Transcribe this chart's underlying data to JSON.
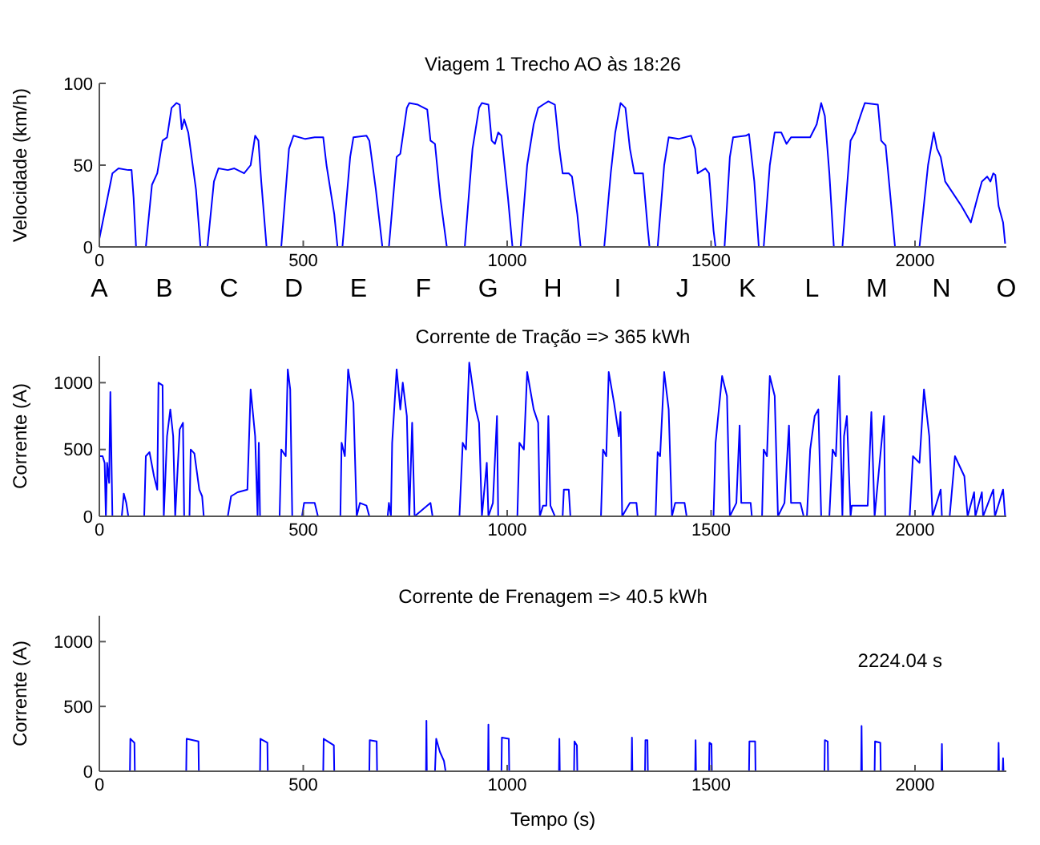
{
  "chart_data": [
    {
      "type": "line",
      "title": "Viagem 1 Trecho AO às 18:26",
      "ylabel": "Velocidade (km/h)",
      "color": "#0000ff",
      "xlim": [
        0,
        2224
      ],
      "xticks": [
        0,
        500,
        1000,
        1500,
        2000
      ],
      "ylim": [
        0,
        100
      ],
      "yticks": [
        0,
        50,
        100
      ],
      "x": [
        0,
        16,
        32,
        47,
        71,
        79,
        84,
        90,
        114,
        129,
        142,
        155,
        166,
        177,
        189,
        197,
        202,
        208,
        218,
        237,
        248,
        265,
        281,
        292,
        315,
        331,
        355,
        371,
        382,
        390,
        397,
        410,
        446,
        465,
        476,
        505,
        528,
        549,
        557,
        576,
        584,
        596,
        615,
        623,
        655,
        662,
        678,
        694,
        710,
        729,
        738,
        754,
        760,
        781,
        804,
        812,
        823,
        836,
        852,
        896,
        915,
        931,
        938,
        954,
        962,
        970,
        978,
        986,
        1002,
        1013,
        1033,
        1049,
        1065,
        1076,
        1088,
        1101,
        1117,
        1128,
        1136,
        1151,
        1159,
        1172,
        1180,
        1238,
        1254,
        1265,
        1278,
        1290,
        1301,
        1312,
        1333,
        1345,
        1349,
        1369,
        1385,
        1396,
        1420,
        1451,
        1461,
        1467,
        1486,
        1495,
        1506,
        1511,
        1533,
        1546,
        1554,
        1585,
        1593,
        1606,
        1617,
        1629,
        1644,
        1656,
        1672,
        1685,
        1696,
        1743,
        1759,
        1770,
        1779,
        1790,
        1801,
        1822,
        1842,
        1853,
        1866,
        1877,
        1909,
        1917,
        1928,
        1940,
        1951,
        2011,
        2032,
        2046,
        2054,
        2063,
        2074,
        2114,
        2137,
        2153,
        2164,
        2177,
        2185,
        2192,
        2197,
        2205,
        2216,
        2221
      ],
      "values": [
        5,
        25,
        45,
        48,
        47,
        47,
        30,
        0,
        0,
        38,
        45,
        65,
        67,
        85,
        88,
        87,
        72,
        78,
        70,
        35,
        0,
        0,
        40,
        48,
        47,
        48,
        45,
        50,
        68,
        65,
        40,
        0,
        0,
        60,
        68,
        66,
        67,
        67,
        50,
        20,
        0,
        0,
        55,
        67,
        68,
        65,
        35,
        0,
        0,
        55,
        57,
        85,
        88,
        87,
        84,
        65,
        63,
        30,
        0,
        0,
        60,
        85,
        88,
        87,
        65,
        63,
        70,
        68,
        30,
        0,
        0,
        50,
        75,
        85,
        87,
        89,
        87,
        60,
        45,
        45,
        43,
        20,
        0,
        0,
        45,
        70,
        88,
        85,
        60,
        45,
        45,
        10,
        0,
        0,
        50,
        67,
        66,
        68,
        60,
        45,
        48,
        45,
        10,
        0,
        0,
        55,
        67,
        68,
        69,
        40,
        0,
        0,
        50,
        70,
        70,
        63,
        67,
        67,
        75,
        88,
        80,
        45,
        0,
        0,
        65,
        70,
        80,
        88,
        87,
        65,
        62,
        30,
        0,
        0,
        50,
        70,
        60,
        55,
        40,
        25,
        15,
        30,
        40,
        43,
        40,
        45,
        44,
        25,
        15,
        2
      ],
      "annotations": [
        "A",
        "B",
        "C",
        "D",
        "E",
        "F",
        "G",
        "H",
        "I",
        "J",
        "K",
        "L",
        "M",
        "N",
        "O"
      ]
    },
    {
      "type": "line",
      "title": "Corrente de Tração => 365 kWh",
      "ylabel": "Corrente (A)",
      "color": "#0000ff",
      "xlim": [
        0,
        2224
      ],
      "xticks": [
        0,
        500,
        1000,
        1500,
        2000
      ],
      "ylim": [
        0,
        1200
      ],
      "yticks": [
        0,
        500,
        1000
      ],
      "x": [
        0,
        8,
        13,
        16,
        19,
        24,
        27,
        32,
        55,
        60,
        66,
        71,
        110,
        114,
        123,
        134,
        142,
        145,
        155,
        158,
        166,
        174,
        181,
        186,
        197,
        205,
        208,
        221,
        224,
        233,
        245,
        252,
        256,
        315,
        323,
        339,
        363,
        371,
        382,
        388,
        391,
        394,
        442,
        446,
        457,
        462,
        468,
        473,
        497,
        502,
        528,
        536,
        591,
        594,
        602,
        610,
        623,
        631,
        639,
        655,
        662,
        707,
        710,
        715,
        718,
        729,
        738,
        744,
        754,
        760,
        767,
        773,
        812,
        817,
        883,
        891,
        899,
        907,
        923,
        931,
        938,
        950,
        954,
        965,
        975,
        978,
        1025,
        1030,
        1041,
        1049,
        1065,
        1076,
        1080,
        1088,
        1096,
        1101,
        1106,
        1117,
        1136,
        1139,
        1151,
        1155,
        1230,
        1235,
        1243,
        1249,
        1262,
        1274,
        1278,
        1282,
        1301,
        1317,
        1320,
        1364,
        1369,
        1375,
        1385,
        1396,
        1404,
        1412,
        1435,
        1440,
        1506,
        1511,
        1527,
        1539,
        1546,
        1562,
        1570,
        1574,
        1597,
        1600,
        1625,
        1629,
        1637,
        1644,
        1656,
        1664,
        1680,
        1691,
        1696,
        1719,
        1727,
        1735,
        1743,
        1754,
        1763,
        1770,
        1790,
        1798,
        1806,
        1814,
        1822,
        1826,
        1833,
        1842,
        1845,
        1884,
        1893,
        1901,
        1924,
        1927,
        1987,
        1995,
        2011,
        2022,
        2035,
        2043,
        2063,
        2066,
        2085,
        2098,
        2121,
        2129,
        2145,
        2148,
        2164,
        2167,
        2192,
        2196,
        2216,
        2221
      ],
      "values": [
        450,
        450,
        400,
        0,
        400,
        250,
        930,
        0,
        0,
        170,
        100,
        0,
        0,
        450,
        480,
        300,
        200,
        1000,
        980,
        0,
        600,
        800,
        600,
        0,
        650,
        700,
        0,
        0,
        500,
        470,
        200,
        150,
        0,
        0,
        150,
        180,
        200,
        950,
        600,
        0,
        550,
        0,
        0,
        500,
        450,
        1100,
        950,
        0,
        0,
        100,
        100,
        0,
        0,
        550,
        450,
        1100,
        850,
        0,
        100,
        80,
        0,
        0,
        100,
        0,
        550,
        1100,
        800,
        1000,
        750,
        0,
        700,
        0,
        100,
        0,
        0,
        550,
        500,
        1150,
        800,
        700,
        0,
        400,
        0,
        100,
        750,
        0,
        0,
        550,
        500,
        1080,
        800,
        700,
        0,
        80,
        80,
        750,
        80,
        0,
        0,
        200,
        200,
        0,
        0,
        500,
        450,
        1080,
        850,
        600,
        780,
        0,
        100,
        100,
        0,
        0,
        480,
        450,
        1080,
        800,
        0,
        100,
        100,
        0,
        0,
        550,
        1050,
        900,
        0,
        100,
        680,
        100,
        100,
        0,
        0,
        500,
        450,
        1050,
        900,
        0,
        100,
        680,
        100,
        100,
        0,
        0,
        500,
        750,
        800,
        0,
        0,
        500,
        450,
        1050,
        0,
        600,
        750,
        0,
        80,
        80,
        780,
        0,
        750,
        0,
        0,
        450,
        400,
        950,
        600,
        0,
        200,
        0,
        0,
        450,
        300,
        0,
        180,
        0,
        180,
        0,
        200,
        0,
        200,
        0
      ]
    },
    {
      "type": "line",
      "title": "Corrente de Frenagem => 40.5 kWh",
      "xlabel": "Tempo (s)",
      "ylabel": "Corrente (A)",
      "color": "#0000ff",
      "xlim": [
        0,
        2224
      ],
      "xticks": [
        0,
        500,
        1000,
        1500,
        2000
      ],
      "ylim": [
        0,
        1200
      ],
      "yticks": [
        0,
        500,
        1000
      ],
      "x": [
        75,
        76,
        86,
        87,
        213,
        214,
        243,
        244,
        394,
        395,
        412,
        413,
        549,
        550,
        575,
        576,
        662,
        663,
        680,
        681,
        801,
        802,
        803,
        823,
        826,
        835,
        845,
        849,
        953,
        954,
        955,
        986,
        987,
        1004,
        1005,
        1127,
        1128,
        1129,
        1164,
        1165,
        1171,
        1172,
        1305,
        1306,
        1307,
        1338,
        1339,
        1344,
        1345,
        1461,
        1462,
        1463,
        1495,
        1496,
        1501,
        1502,
        1593,
        1594,
        1608,
        1609,
        1778,
        1779,
        1786,
        1787,
        1868,
        1869,
        1870,
        1901,
        1902,
        1915,
        1916,
        2065,
        2066,
        2067,
        2204,
        2205,
        2206,
        2215,
        2216,
        2217
      ],
      "values": [
        0,
        250,
        220,
        0,
        0,
        250,
        230,
        0,
        0,
        250,
        220,
        0,
        0,
        250,
        200,
        0,
        0,
        240,
        230,
        0,
        0,
        390,
        0,
        0,
        250,
        150,
        80,
        0,
        0,
        360,
        0,
        0,
        260,
        250,
        0,
        0,
        250,
        0,
        0,
        230,
        200,
        0,
        0,
        260,
        0,
        0,
        240,
        240,
        0,
        0,
        240,
        0,
        0,
        220,
        210,
        0,
        0,
        230,
        230,
        0,
        0,
        240,
        230,
        0,
        0,
        350,
        0,
        0,
        230,
        220,
        0,
        0,
        210,
        0,
        0,
        220,
        0,
        0,
        100,
        0
      ],
      "annotations": [
        "2224.04 s"
      ]
    }
  ]
}
